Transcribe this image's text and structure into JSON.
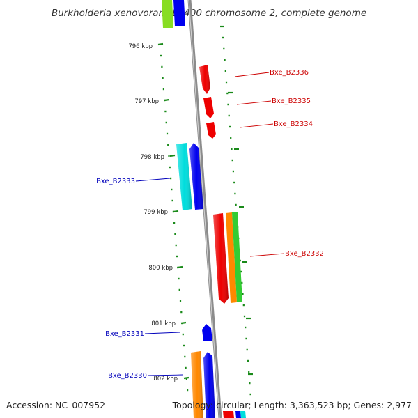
{
  "title": "Burkholderia xenovorans LB400 chromosome 2, complete genome",
  "footer": {
    "accession": "Accession: NC_007952",
    "summary": "Topology: circular; Length: 3,363,523 bp; Genes: 2,977"
  },
  "colors": {
    "backbone": "#8c8c8c",
    "ticks": "#1a8a1a",
    "forward_label": "#cc0000",
    "reverse_label": "#0000bb"
  },
  "kbp_labels": [
    "796 kbp",
    "797 kbp",
    "798 kbp",
    "799 kbp",
    "800 kbp",
    "801 kbp",
    "802 kbp"
  ],
  "gene_labels": [
    {
      "text": "Bxe_B2336",
      "strand": "forward"
    },
    {
      "text": "Bxe_B2335",
      "strand": "forward"
    },
    {
      "text": "Bxe_B2334",
      "strand": "forward"
    },
    {
      "text": "Bxe_B2333",
      "strand": "reverse"
    },
    {
      "text": "Bxe_B2332",
      "strand": "forward"
    },
    {
      "text": "Bxe_B2331",
      "strand": "reverse"
    },
    {
      "text": "Bxe_B2330",
      "strand": "reverse"
    }
  ],
  "features": [
    {
      "color": "#88dd22"
    },
    {
      "color": "#0000ee"
    },
    {
      "color": "#ee0000"
    },
    {
      "color": "#ee0000"
    },
    {
      "color": "#ee0000"
    },
    {
      "color": "#00dddd"
    },
    {
      "color": "#0000ee"
    },
    {
      "color": "#ee0000"
    },
    {
      "color": "#ff8800"
    },
    {
      "color": "#33cc33"
    },
    {
      "color": "#0000ee"
    },
    {
      "color": "#ff8800"
    },
    {
      "color": "#0000ee"
    },
    {
      "color": "#ee0000"
    },
    {
      "color": "#0000ee"
    },
    {
      "color": "#00dddd"
    }
  ]
}
